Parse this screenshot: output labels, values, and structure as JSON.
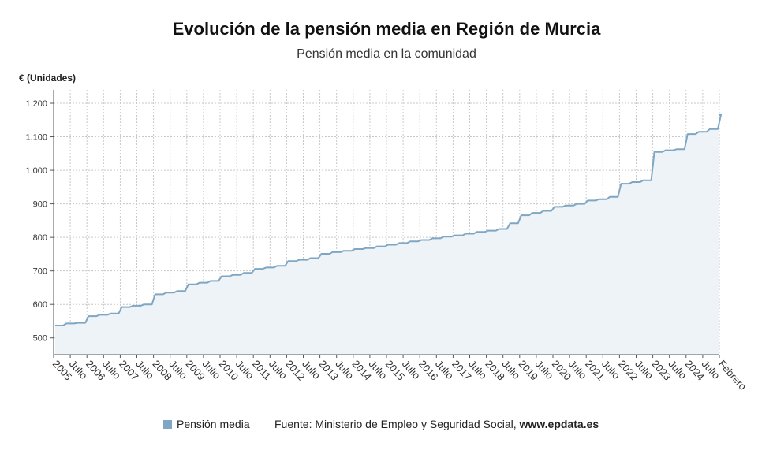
{
  "chart_data": {
    "type": "area",
    "title": "Evolución de la pensión media en Región de Murcia",
    "subtitle": "Pensión media en la comunidad",
    "ylabel": "€ (Unidades)",
    "ylim": [
      450,
      1240
    ],
    "yticks": [
      500,
      600,
      700,
      800,
      900,
      1000,
      1100,
      1200
    ],
    "ytick_labels": [
      "500",
      "600",
      "700",
      "800",
      "900",
      "1.000",
      "1.100",
      "1.200"
    ],
    "x_tick_labels": [
      "2005",
      "Julio",
      "2006",
      "Julio",
      "2007",
      "Julio",
      "2008",
      "Julio",
      "2009",
      "Julio",
      "2010",
      "Julio",
      "2011",
      "Julio",
      "2012",
      "Julio",
      "2013",
      "Julio",
      "2014",
      "Julio",
      "2015",
      "Julio",
      "2016",
      "Julio",
      "2017",
      "Julio",
      "2018",
      "Julio",
      "2019",
      "Julio",
      "2020",
      "Julio",
      "2021",
      "Julio",
      "2022",
      "Julio",
      "2023",
      "Julio",
      "2024",
      "Julio",
      "Febrero"
    ],
    "grid": true,
    "legend_position": "bottom-left",
    "series": [
      {
        "name": "Pensión media",
        "color": "#7fa6c3",
        "annual_values": [
          [
            537,
            543,
            545
          ],
          [
            565,
            569,
            573
          ],
          [
            592,
            596,
            600
          ],
          [
            630,
            635,
            640
          ],
          [
            660,
            665,
            670
          ],
          [
            684,
            688,
            694
          ],
          [
            706,
            710,
            715
          ],
          [
            729,
            733,
            738
          ],
          [
            751,
            756,
            760
          ],
          [
            765,
            768,
            773
          ],
          [
            778,
            783,
            788
          ],
          [
            792,
            797,
            802
          ],
          [
            806,
            811,
            816
          ],
          [
            820,
            825,
            842
          ],
          [
            866,
            873,
            879
          ],
          [
            891,
            895,
            900
          ],
          [
            910,
            914,
            921
          ],
          [
            960,
            965,
            970
          ],
          [
            1055,
            1060,
            1063
          ],
          [
            1108,
            1115,
            1123
          ],
          [
            1165
          ]
        ]
      }
    ]
  },
  "legend": {
    "label": "Pensión media"
  },
  "source": {
    "prefix": "Fuente: Ministerio de Empleo y Seguridad Social, ",
    "site": "www.epdata.es"
  }
}
